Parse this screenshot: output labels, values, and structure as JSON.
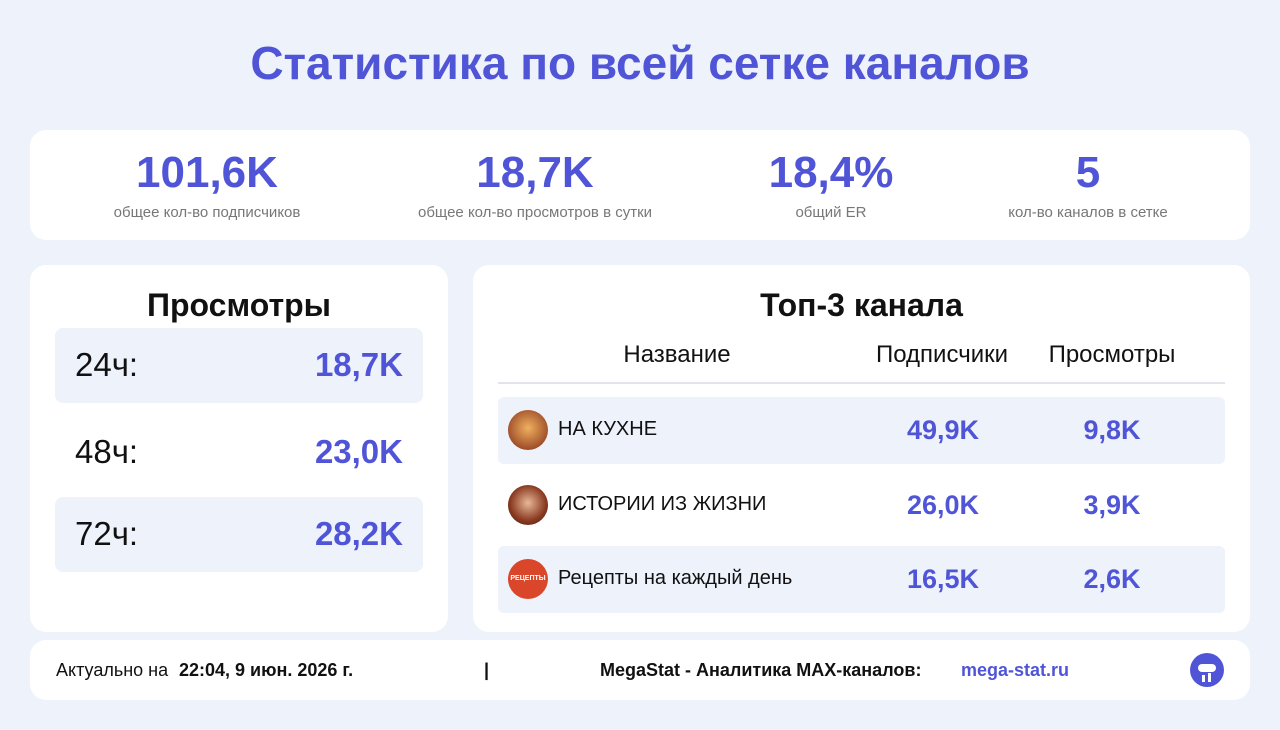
{
  "header": {
    "title": "Статистика по всей сетке каналов"
  },
  "stats": [
    {
      "value": "101,6K",
      "label": "общее кол-во подписчиков"
    },
    {
      "value": "18,7K",
      "label": "общее кол-во просмотров в сутки"
    },
    {
      "value": "18,4%",
      "label": "общий ER"
    },
    {
      "value": "5",
      "label": "кол-во каналов в сетке"
    }
  ],
  "views": {
    "title": "Просмотры",
    "rows": [
      {
        "period": "24ч:",
        "value": "18,7K"
      },
      {
        "period": "48ч:",
        "value": "23,0K"
      },
      {
        "period": "72ч:",
        "value": "28,2K"
      }
    ]
  },
  "top": {
    "title": "Топ-3 канала",
    "columns": [
      "Название",
      "Подписчики",
      "Просмотры"
    ],
    "rows": [
      {
        "name": "НА КУХНЕ",
        "subscribers": "49,9K",
        "views": "9,8K"
      },
      {
        "name": "ИСТОРИИ ИЗ ЖИЗНИ",
        "subscribers": "26,0K",
        "views": "3,9K"
      },
      {
        "name": "Рецепты на каждый день",
        "subscribers": "16,5K",
        "views": "2,6K",
        "icon_text": "РЕЦЕПТЫ"
      }
    ]
  },
  "footer": {
    "updated_label": "Актуально на",
    "updated_at": "22:04, 9 июн. 2026 г.",
    "separator": "|",
    "brand": "MegaStat - Аналитика MAX-каналов:",
    "link": "mega-stat.ru"
  }
}
